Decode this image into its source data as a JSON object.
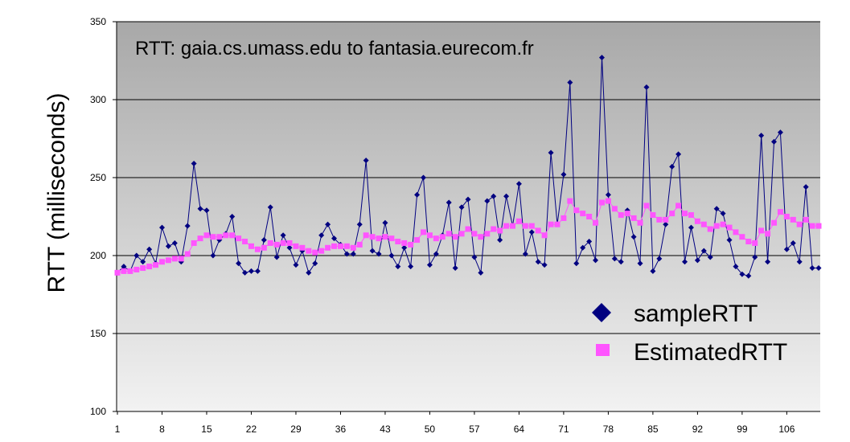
{
  "chart_data": {
    "type": "line",
    "title": "RTT: gaia.cs.umass.edu to fantasia.eurecom.fr",
    "xlabel": "",
    "ylabel": "RTT (milliseconds)",
    "ylim": [
      100,
      350
    ],
    "yticks": [
      100,
      150,
      200,
      250,
      300,
      350
    ],
    "xlim": [
      1,
      111
    ],
    "xticks": [
      1,
      8,
      15,
      22,
      29,
      36,
      43,
      50,
      57,
      64,
      71,
      78,
      85,
      92,
      99,
      106
    ],
    "grid": true,
    "legend_position": "bottom-right",
    "background_gradient": [
      "#a8a8a8",
      "#f2f2f2"
    ],
    "colors": {
      "sampleRTT": "#000080",
      "EstimatedRTT": "#ff55ff"
    },
    "series": [
      {
        "name": "sampleRTT",
        "marker": "diamond",
        "x": [
          1,
          2,
          3,
          4,
          5,
          6,
          7,
          8,
          9,
          10,
          11,
          12,
          13,
          14,
          15,
          16,
          17,
          18,
          19,
          20,
          21,
          22,
          23,
          24,
          25,
          26,
          27,
          28,
          29,
          30,
          31,
          32,
          33,
          34,
          35,
          36,
          37,
          38,
          39,
          40,
          41,
          42,
          43,
          44,
          45,
          46,
          47,
          48,
          49,
          50,
          51,
          52,
          53,
          54,
          55,
          56,
          57,
          58,
          59,
          60,
          61,
          62,
          63,
          64,
          65,
          66,
          67,
          68,
          69,
          70,
          71,
          72,
          73,
          74,
          75,
          76,
          77,
          78,
          79,
          80,
          81,
          82,
          83,
          84,
          85,
          86,
          87,
          88,
          89,
          90,
          91,
          92,
          93,
          94,
          95,
          96,
          97,
          98,
          99,
          100,
          101,
          102,
          103,
          104,
          105,
          106,
          107,
          108,
          109,
          110,
          111
        ],
        "values": [
          189,
          193,
          190,
          200,
          196,
          204,
          195,
          218,
          206,
          208,
          196,
          219,
          259,
          230,
          229,
          200,
          210,
          214,
          225,
          195,
          189,
          190,
          190,
          210,
          231,
          199,
          213,
          205,
          194,
          203,
          189,
          195,
          213,
          220,
          211,
          207,
          201,
          201,
          220,
          261,
          203,
          201,
          221,
          200,
          193,
          205,
          193,
          239,
          250,
          194,
          201,
          213,
          234,
          192,
          231,
          236,
          199,
          189,
          235,
          238,
          210,
          238,
          219,
          246,
          201,
          215,
          196,
          194,
          266,
          220,
          252,
          311,
          195,
          205,
          209,
          197,
          327,
          239,
          198,
          196,
          229,
          212,
          195,
          308,
          190,
          198,
          220,
          257,
          265,
          196,
          218,
          197,
          203,
          199,
          230,
          227,
          210,
          193,
          188,
          187,
          199,
          277,
          196,
          273,
          279,
          204,
          208,
          196,
          244,
          192,
          192
        ]
      },
      {
        "name": "EstimatedRTT",
        "marker": "square",
        "x": [
          1,
          2,
          3,
          4,
          5,
          6,
          7,
          8,
          9,
          10,
          11,
          12,
          13,
          14,
          15,
          16,
          17,
          18,
          19,
          20,
          21,
          22,
          23,
          24,
          25,
          26,
          27,
          28,
          29,
          30,
          31,
          32,
          33,
          34,
          35,
          36,
          37,
          38,
          39,
          40,
          41,
          42,
          43,
          44,
          45,
          46,
          47,
          48,
          49,
          50,
          51,
          52,
          53,
          54,
          55,
          56,
          57,
          58,
          59,
          60,
          61,
          62,
          63,
          64,
          65,
          66,
          67,
          68,
          69,
          70,
          71,
          72,
          73,
          74,
          75,
          76,
          77,
          78,
          79,
          80,
          81,
          82,
          83,
          84,
          85,
          86,
          87,
          88,
          89,
          90,
          91,
          92,
          93,
          94,
          95,
          96,
          97,
          98,
          99,
          100,
          101,
          102,
          103,
          104,
          105,
          106,
          107,
          108,
          109,
          110,
          111
        ],
        "values": [
          189,
          190,
          190,
          191,
          192,
          193,
          194,
          196,
          197,
          198,
          198,
          201,
          208,
          211,
          213,
          212,
          212,
          213,
          213,
          211,
          209,
          206,
          204,
          205,
          208,
          207,
          208,
          208,
          206,
          205,
          203,
          202,
          203,
          205,
          206,
          206,
          206,
          205,
          207,
          213,
          212,
          211,
          212,
          211,
          209,
          208,
          207,
          210,
          215,
          213,
          211,
          212,
          214,
          212,
          214,
          217,
          214,
          212,
          214,
          217,
          216,
          219,
          219,
          222,
          219,
          219,
          216,
          213,
          220,
          220,
          224,
          235,
          229,
          227,
          225,
          221,
          234,
          235,
          230,
          226,
          227,
          224,
          221,
          232,
          226,
          223,
          223,
          227,
          232,
          227,
          226,
          222,
          220,
          217,
          219,
          220,
          218,
          215,
          212,
          209,
          208,
          216,
          214,
          221,
          228,
          225,
          223,
          220,
          223,
          219,
          219
        ]
      }
    ]
  }
}
